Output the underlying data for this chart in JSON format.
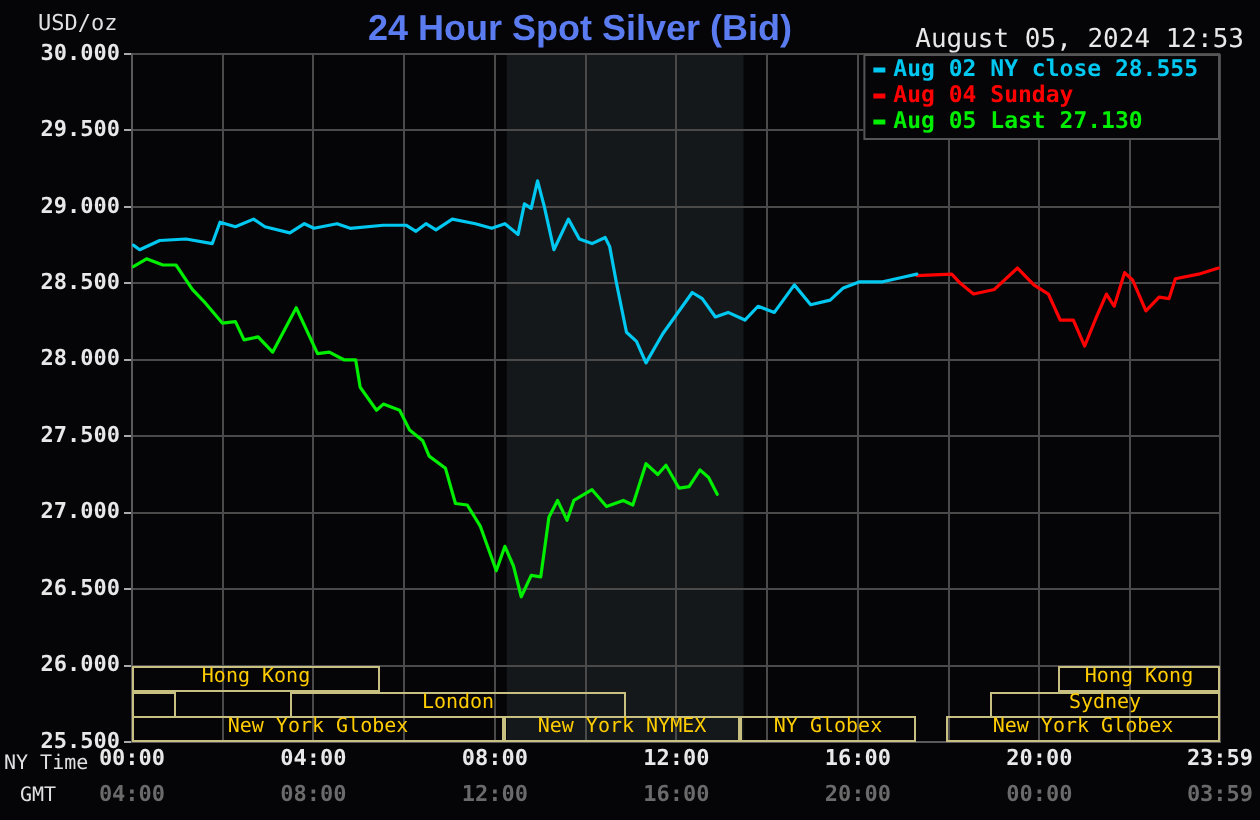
{
  "chart_data": [
    {
      "type": "line",
      "title": "24 Hour Spot Silver (Bid)",
      "subtitle": "August 05, 2024 12:53",
      "ylabel": "USD/oz",
      "xlabel": "NY Time",
      "x2label": "GMT",
      "xlim": [
        0,
        23.983
      ],
      "xticks": [
        {
          "value": 0,
          "label": "00:00"
        },
        {
          "value": 2,
          "label": null
        },
        {
          "value": 4,
          "label": "04:00"
        },
        {
          "value": 6,
          "label": null
        },
        {
          "value": 8,
          "label": "08:00"
        },
        {
          "value": 10,
          "label": null
        },
        {
          "value": 12,
          "label": "12:00"
        },
        {
          "value": 14,
          "label": null
        },
        {
          "value": 16,
          "label": "16:00"
        },
        {
          "value": 18,
          "label": null
        },
        {
          "value": 20,
          "label": "20:00"
        },
        {
          "value": 22,
          "label": null
        },
        {
          "value": 23.983,
          "label": "23:59"
        }
      ],
      "x2lim": [
        "2024-08-05T04:00",
        "2024-08-06T03:59"
      ],
      "x2ticks": [
        {
          "value": "2024-08-05T04:00",
          "label": "04:00"
        },
        {
          "value": "2024-08-05T08:00",
          "label": "08:00"
        },
        {
          "value": "2024-08-05T12:00",
          "label": "12:00"
        },
        {
          "value": "2024-08-05T16:00",
          "label": "16:00"
        },
        {
          "value": "2024-08-05T20:00",
          "label": "20:00"
        },
        {
          "value": "2024-08-06T00:00",
          "label": "00:00"
        },
        {
          "value": "2024-08-06T03:59",
          "label": "03:59"
        }
      ],
      "ylim": [
        25.5,
        30
      ],
      "yticks": [
        {
          "value": 25.5,
          "label": "25.500"
        },
        {
          "value": 26,
          "label": "26.000"
        },
        {
          "value": 26.5,
          "label": "26.500"
        },
        {
          "value": 27,
          "label": "27.000"
        },
        {
          "value": 27.5,
          "label": "27.500"
        },
        {
          "value": 28,
          "label": "28.000"
        },
        {
          "value": 28.5,
          "label": "28.500"
        },
        {
          "value": 29,
          "label": "29.000"
        },
        {
          "value": 29.5,
          "label": "29.500"
        },
        {
          "value": 30,
          "label": "30.000"
        }
      ],
      "grid": true,
      "legend": "top right",
      "marker": "none",
      "line_style": "solid",
      "bands": [
        {
          "axis": "x",
          "from": 8.26,
          "to": 13.48,
          "color": "#15181a"
        }
      ],
      "series": [
        {
          "name": "Aug 02 NY close 28.555",
          "color": "#00c8f0",
          "x": [
            0.03,
            0.17,
            0.61,
            1.19,
            1.77,
            1.94,
            2.28,
            2.68,
            2.93,
            3.48,
            3.8,
            4.01,
            4.52,
            4.81,
            5.54,
            6.04,
            6.26,
            6.48,
            6.7,
            7.06,
            7.57,
            7.93,
            8.22,
            8.51,
            8.65,
            8.8,
            8.94,
            9.09,
            9.3,
            9.62,
            9.86,
            10.14,
            10.43,
            10.53,
            10.68,
            10.9,
            11.12,
            11.33,
            11.7,
            12.35,
            12.57,
            12.86,
            13.14,
            13.51,
            13.8,
            14.16,
            14.6,
            14.96,
            15.39,
            15.68,
            16.04,
            16.55,
            16.99,
            17.3
          ],
          "values": [
            28.75,
            28.72,
            28.78,
            28.79,
            28.76,
            28.9,
            28.87,
            28.92,
            28.87,
            28.83,
            28.89,
            28.86,
            28.89,
            28.86,
            28.88,
            28.88,
            28.84,
            28.89,
            28.85,
            28.92,
            28.89,
            28.86,
            28.89,
            28.82,
            29.02,
            28.99,
            29.17,
            29,
            28.72,
            28.92,
            28.79,
            28.76,
            28.8,
            28.74,
            28.5,
            28.18,
            28.12,
            27.98,
            28.17,
            28.44,
            28.4,
            28.28,
            28.31,
            28.26,
            28.35,
            28.31,
            28.49,
            28.36,
            28.39,
            28.47,
            28.51,
            28.51,
            28.54,
            28.56
          ]
        },
        {
          "name": "Aug 04 Sunday",
          "color": "#ff0000",
          "x": [
            17.3,
            18.07,
            18.26,
            18.55,
            19.01,
            19.52,
            19.88,
            20.2,
            20.46,
            20.75,
            21,
            21.26,
            21.48,
            21.65,
            21.88,
            22.06,
            22.35,
            22.64,
            22.86,
            23,
            23.51,
            23.95
          ],
          "values": [
            28.55,
            28.56,
            28.5,
            28.43,
            28.46,
            28.6,
            28.49,
            28.43,
            28.26,
            28.26,
            28.09,
            28.28,
            28.43,
            28.35,
            28.57,
            28.52,
            28.32,
            28.41,
            28.4,
            28.53,
            28.56,
            28.6
          ]
        },
        {
          "name": "Aug 05 Last 27.130",
          "color": "#00ee00",
          "x": [
            0.03,
            0.32,
            0.68,
            0.97,
            1.33,
            1.62,
            1.99,
            2.28,
            2.47,
            2.78,
            3.1,
            3.62,
            4.09,
            4.35,
            4.67,
            4.93,
            5.03,
            5.39,
            5.54,
            5.9,
            6.12,
            6.41,
            6.55,
            6.91,
            7.13,
            7.39,
            7.68,
            8.03,
            8.22,
            8.41,
            8.58,
            8.8,
            9.01,
            9.19,
            9.38,
            9.59,
            9.74,
            10.14,
            10.46,
            10.83,
            11.04,
            11.33,
            11.59,
            11.77,
            12.06,
            12.28,
            12.52,
            12.71,
            12.9
          ],
          "values": [
            28.61,
            28.66,
            28.62,
            28.62,
            28.46,
            28.37,
            28.24,
            28.25,
            28.13,
            28.15,
            28.05,
            28.34,
            28.04,
            28.05,
            28,
            28,
            27.82,
            27.67,
            27.71,
            27.67,
            27.54,
            27.47,
            27.37,
            27.29,
            27.06,
            27.05,
            26.91,
            26.62,
            26.78,
            26.65,
            26.45,
            26.59,
            26.58,
            26.97,
            27.08,
            26.95,
            27.08,
            27.15,
            27.04,
            27.08,
            27.05,
            27.32,
            27.25,
            27.31,
            27.16,
            27.17,
            27.28,
            27.23,
            27.12
          ]
        }
      ]
    },
    {
      "type": "other",
      "annotations": [
        "Hong Kong",
        "Hong Kong",
        "London",
        "Sydney",
        "New York Globex",
        "New York NYMEX",
        "NY Globex",
        "New York Globex"
      ]
    }
  ]
}
